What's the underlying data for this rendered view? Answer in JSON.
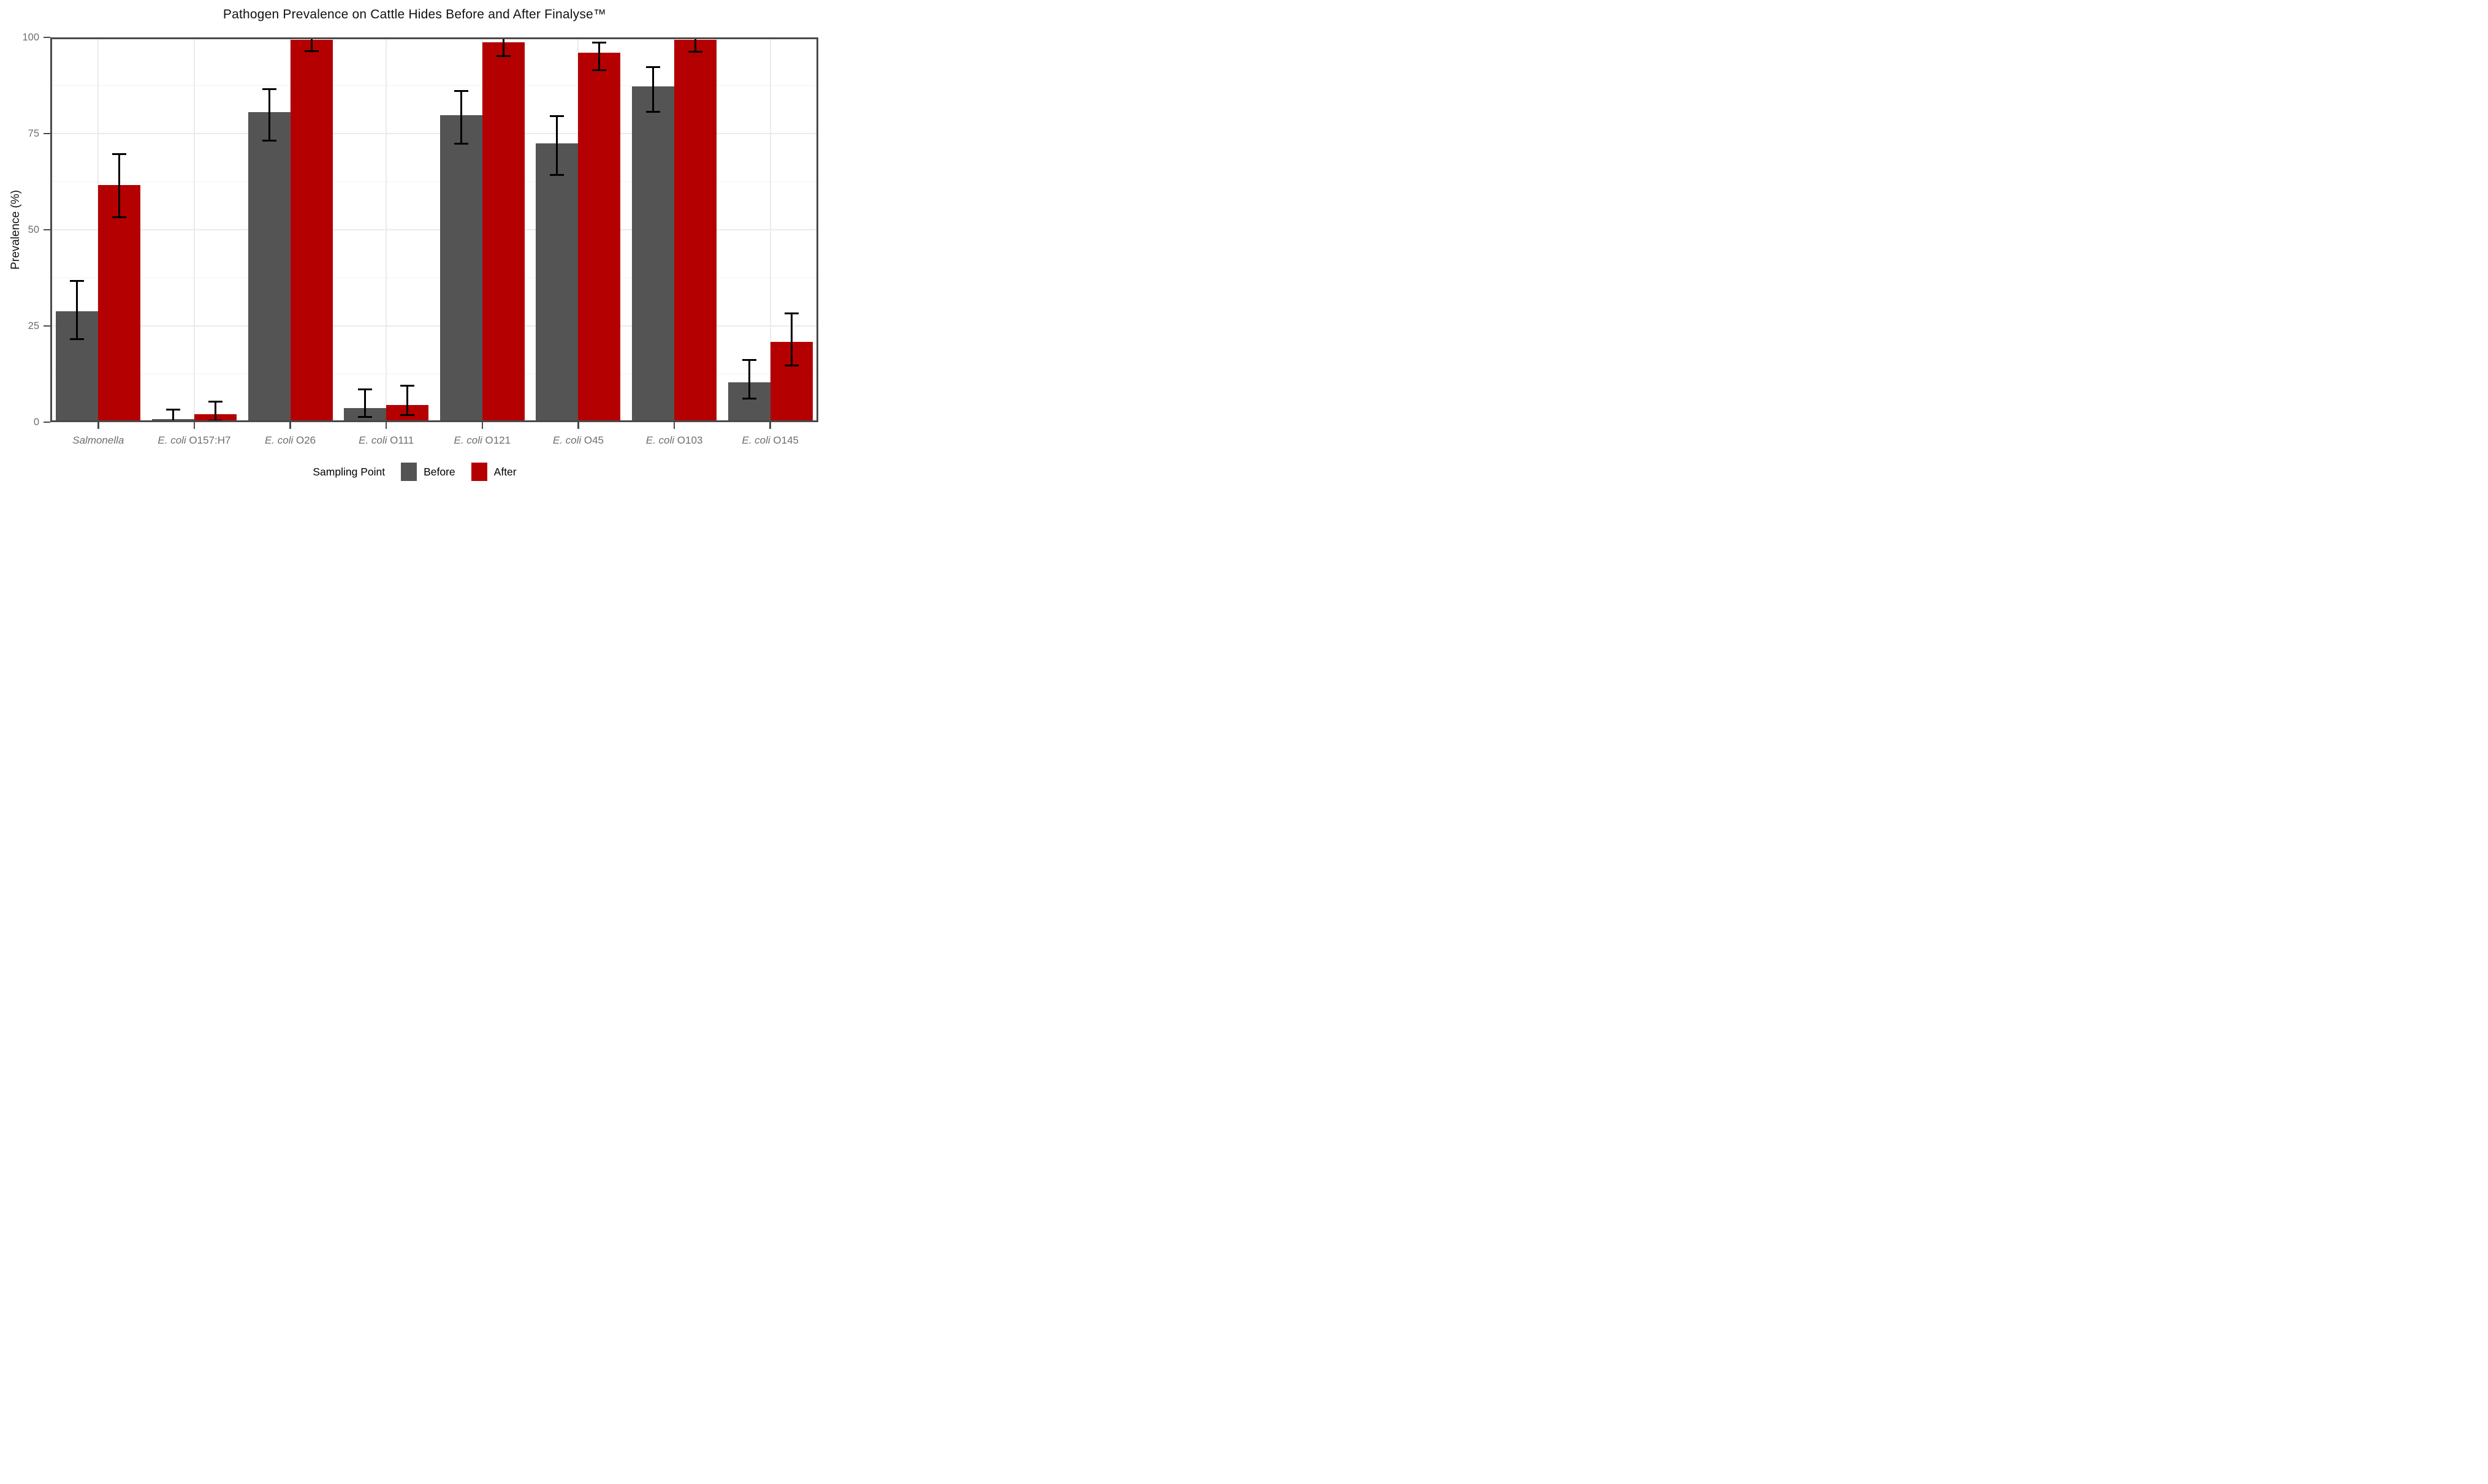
{
  "title": "Pathogen Prevalence on Cattle Hides Before and After Finalyse™",
  "colors": {
    "before_bar": "#545454",
    "after_bar": "#B40000",
    "panel_border": "#4A4A4A",
    "grid_major": "#EBEBEB",
    "grid_minor": "#F2F2F2",
    "tick_label": "#6e6e6e",
    "error_bar": "#000000"
  },
  "chart_data": {
    "type": "bar",
    "title": "Pathogen Prevalence on Cattle Hides Before and After Finalyse™",
    "xlabel": "",
    "ylabel": "Prevalence (%)",
    "ylim": [
      0,
      100
    ],
    "y_major_ticks": [
      0,
      25,
      50,
      75,
      100
    ],
    "y_minor_gridlines": [
      12.5,
      37.5,
      62.5,
      87.5
    ],
    "grid": true,
    "legend_title": "Sampling Point",
    "legend_position": "bottom",
    "categories": [
      "Salmonella",
      "E. coli O157:H7",
      "E. coli O26",
      "E. coli O111",
      "E. coli O121",
      "E. coli O45",
      "E. coli O103",
      "E. coli O145"
    ],
    "categories_rich": [
      {
        "italic": "Salmonella",
        "roman": ""
      },
      {
        "italic": "E. coli",
        "roman": " O157:H7"
      },
      {
        "italic": "E. coli",
        "roman": " O26"
      },
      {
        "italic": "E. coli",
        "roman": " O111"
      },
      {
        "italic": "E. coli",
        "roman": " O121"
      },
      {
        "italic": "E. coli",
        "roman": " O45"
      },
      {
        "italic": "E. coli",
        "roman": " O103"
      },
      {
        "italic": "E. coli",
        "roman": " O145"
      }
    ],
    "series": [
      {
        "name": "Before",
        "color": "#545454",
        "values": [
          28.9,
          0.8,
          80.5,
          3.6,
          79.7,
          72.4,
          87.3,
          10.3
        ],
        "ci_low": [
          21.5,
          0.1,
          73.2,
          1.4,
          72.4,
          64.3,
          80.6,
          6.1
        ],
        "ci_high": [
          36.7,
          3.2,
          86.6,
          8.5,
          86.0,
          79.6,
          92.2,
          16.2
        ]
      },
      {
        "name": "After",
        "color": "#B40000",
        "values": [
          61.7,
          2.0,
          99.4,
          4.4,
          98.7,
          96.0,
          99.3,
          20.9
        ],
        "ci_low": [
          53.3,
          0.4,
          96.4,
          1.8,
          95.2,
          91.5,
          96.3,
          14.8
        ],
        "ci_high": [
          69.7,
          5.4,
          99.9,
          9.5,
          99.9,
          98.6,
          99.9,
          28.2
        ]
      }
    ]
  }
}
